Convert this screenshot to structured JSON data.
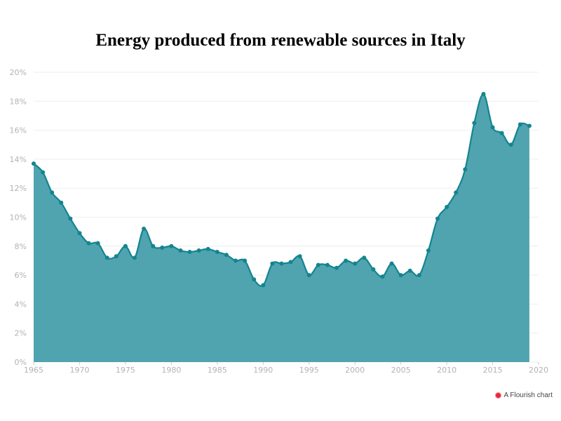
{
  "colors": {
    "area": "#4fa4b0",
    "line": "#14848f",
    "grid": "#eeeeee",
    "tick": "#b3b3b3"
  },
  "credit": {
    "text": "A Flourish chart",
    "icon": "flourish-logo-icon"
  },
  "chart_data": {
    "type": "area",
    "title": "Energy produced from renewable sources in Italy",
    "xlabel": "",
    "ylabel": "",
    "xlim": [
      1965,
      2020
    ],
    "ylim": [
      0,
      20
    ],
    "x_ticks": [
      "1965",
      "1970",
      "1975",
      "1980",
      "1985",
      "1990",
      "1995",
      "2000",
      "2005",
      "2010",
      "2015",
      "2020"
    ],
    "y_ticks": [
      "0%",
      "2%",
      "4%",
      "6%",
      "8%",
      "10%",
      "12%",
      "14%",
      "16%",
      "18%",
      "20%"
    ],
    "grid": true,
    "legend": "none",
    "x": [
      1965,
      1966,
      1967,
      1968,
      1969,
      1970,
      1971,
      1972,
      1973,
      1974,
      1975,
      1976,
      1977,
      1978,
      1979,
      1980,
      1981,
      1982,
      1983,
      1984,
      1985,
      1986,
      1987,
      1988,
      1989,
      1990,
      1991,
      1992,
      1993,
      1994,
      1995,
      1996,
      1997,
      1998,
      1999,
      2000,
      2001,
      2002,
      2003,
      2004,
      2005,
      2006,
      2007,
      2008,
      2009,
      2010,
      2011,
      2012,
      2013,
      2014,
      2015,
      2016,
      2017,
      2018,
      2019
    ],
    "values": [
      13.7,
      13.1,
      11.7,
      11.0,
      9.9,
      8.9,
      8.2,
      8.2,
      7.2,
      7.3,
      8.0,
      7.2,
      9.2,
      8.0,
      7.9,
      8.0,
      7.7,
      7.6,
      7.7,
      7.8,
      7.6,
      7.4,
      7.0,
      7.0,
      5.7,
      5.3,
      6.8,
      6.8,
      6.9,
      7.3,
      6.0,
      6.7,
      6.7,
      6.5,
      7.0,
      6.8,
      7.2,
      6.4,
      5.9,
      6.8,
      6.0,
      6.3,
      6.0,
      7.7,
      9.9,
      10.7,
      11.7,
      13.3,
      16.5,
      18.5,
      16.2,
      15.8,
      15.0,
      16.4,
      16.3
    ]
  }
}
